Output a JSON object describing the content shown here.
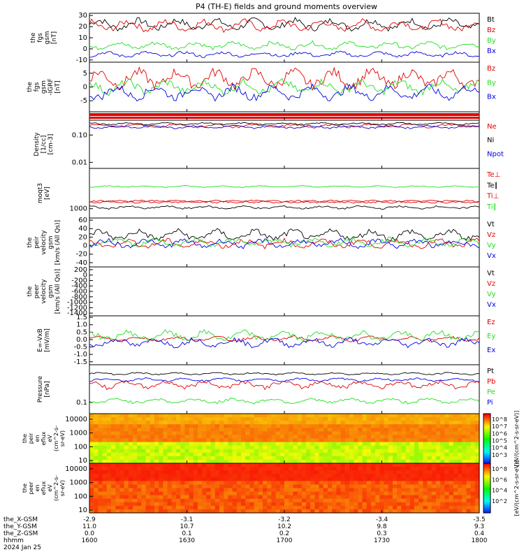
{
  "title": "P4 (TH-E) fields and ground moments overview",
  "colors": {
    "black": "#000000",
    "red": "#e00000",
    "green": "#22dd22",
    "blue": "#0000dd"
  },
  "chart_data": {
    "type": "line",
    "x": {
      "ticks": [
        "1600",
        "1630",
        "1700",
        "1730",
        "1800"
      ]
    },
    "footer": {
      "rows": [
        {
          "label": "the_X-GSM",
          "values": [
            "-2.9",
            "-3.1",
            "-3.2",
            "-3.4",
            "-3.5"
          ]
        },
        {
          "label": "the_Y-GSM",
          "values": [
            "11.0",
            "10.7",
            "10.2",
            "9.8",
            "9.3"
          ]
        },
        {
          "label": "the_Z-GSM",
          "values": [
            "0.0",
            "0.1",
            "0.2",
            "0.3",
            "0.4"
          ]
        },
        {
          "label": "hhmm",
          "values": [
            "1600",
            "1630",
            "1700",
            "1730",
            "1800"
          ]
        }
      ],
      "date": "2024 Jan 25"
    },
    "panels": [
      {
        "id": "fgs",
        "ylabel": [
          "the",
          "fgs",
          "gsm",
          "[nT]"
        ],
        "ylim": [
          -12,
          32
        ],
        "log": false,
        "yticks": [
          "30",
          "20",
          "10",
          "0",
          "-10"
        ],
        "ytick_values": [
          30,
          20,
          10,
          0,
          -10
        ],
        "series": [
          {
            "name": "Bt",
            "color": "black",
            "level": 22,
            "amp": 6
          },
          {
            "name": "Bz",
            "color": "red",
            "level": 21,
            "amp": 6
          },
          {
            "name": "By",
            "color": "green",
            "level": 3,
            "amp": 4
          },
          {
            "name": "Bx",
            "color": "blue",
            "level": -5,
            "amp": 3
          }
        ]
      },
      {
        "id": "fgs-dsl",
        "ylabel": [
          "the",
          "fgs",
          "gsm",
          "-IGRF",
          "[nT]"
        ],
        "ylim": [
          -9,
          9
        ],
        "log": false,
        "yticks": [
          "5",
          "0",
          "-5"
        ],
        "ytick_values": [
          5,
          0,
          -5
        ],
        "series": [
          {
            "name": "Bz",
            "color": "red",
            "level": 3,
            "amp": 4
          },
          {
            "name": "By",
            "color": "green",
            "level": 0,
            "amp": 3
          },
          {
            "name": "Bx",
            "color": "blue",
            "level": -2,
            "amp": 3
          }
        ]
      },
      {
        "id": "density",
        "ylabel": [
          "Density",
          "[1/cc]",
          "[cm-3]"
        ],
        "ylim": [
          0.006,
          0.35
        ],
        "log": true,
        "yticks": [
          "0.10",
          "0.01"
        ],
        "ytick_values": [
          0.1,
          0.01
        ],
        "series": [
          {
            "name": "Ne",
            "color": "red",
            "level": 0.22,
            "amp": 0.04
          },
          {
            "name": "Ni",
            "color": "black",
            "level": 0.26,
            "amp": 0.03
          },
          {
            "name": "Npot",
            "color": "blue",
            "level": 0.2,
            "amp": 0.03
          }
        ]
      },
      {
        "id": "temp",
        "ylabel": [
          "moqt3",
          "[eV]"
        ],
        "ylim": [
          500,
          20000
        ],
        "log": true,
        "yticks": [
          "1000"
        ],
        "ytick_values": [
          1000
        ],
        "series": [
          {
            "name": "Te⊥",
            "color": "red",
            "level": 1700,
            "amp": 200
          },
          {
            "name": "Te∥",
            "color": "black",
            "level": 1100,
            "amp": 150
          },
          {
            "name": "Ti⊥",
            "color": "red",
            "level": 1700,
            "amp": 200
          },
          {
            "name": "Ti∥",
            "color": "green",
            "level": 5200,
            "amp": 400
          }
        ]
      },
      {
        "id": "vel",
        "ylabel": [
          "the",
          "peir",
          "velocity",
          "gsm",
          "[km/s (All Qs)]"
        ],
        "ylim": [
          -50,
          65
        ],
        "log": false,
        "yticks": [
          "60",
          "40",
          "20",
          "0",
          "-20",
          "-40"
        ],
        "ytick_values": [
          60,
          40,
          20,
          0,
          -20,
          -40
        ],
        "series": [
          {
            "name": "Vt",
            "color": "black",
            "level": 25,
            "amp": 15
          },
          {
            "name": "Vz",
            "color": "red",
            "level": 5,
            "amp": 12
          },
          {
            "name": "Vy",
            "color": "green",
            "level": 8,
            "amp": 12
          },
          {
            "name": "Vx",
            "color": "blue",
            "level": 5,
            "amp": 12
          }
        ]
      },
      {
        "id": "vel-peer",
        "ylabel": [
          "the",
          "peer",
          "velocity",
          "gsm",
          "[km/s (All Qs)]"
        ],
        "ylim": [
          -1500,
          300
        ],
        "log": false,
        "yticks": [
          "200",
          "0",
          "-200",
          "-400",
          "-600",
          "-800",
          "-1000",
          "-1200",
          "-1400"
        ],
        "ytick_values": [
          200,
          0,
          -200,
          -400,
          -600,
          -800,
          -1000,
          -1200,
          -1400
        ],
        "series": [
          {
            "name": "Vt",
            "color": "black",
            "level": null,
            "amp": 0
          },
          {
            "name": "Vz",
            "color": "red",
            "level": null,
            "amp": 0
          },
          {
            "name": "Vy",
            "color": "green",
            "level": null,
            "amp": 0
          },
          {
            "name": "Vx",
            "color": "blue",
            "level": null,
            "amp": 0
          }
        ]
      },
      {
        "id": "efield",
        "ylabel": [
          "E=-VxB",
          "[mV/m]"
        ],
        "ylim": [
          -1.7,
          1.6
        ],
        "log": false,
        "yticks": [
          "1.5",
          "1.0",
          "0.5",
          "0.0",
          "-0.5",
          "-1.0",
          "-1.5"
        ],
        "ytick_values": [
          1.5,
          1.0,
          0.5,
          0.0,
          -0.5,
          -1.0,
          -1.5
        ],
        "series": [
          {
            "name": "Ez",
            "color": "red",
            "level": 0.05,
            "amp": 0.2
          },
          {
            "name": "Ey",
            "color": "green",
            "level": 0.25,
            "amp": 0.4
          },
          {
            "name": "Ex",
            "color": "blue",
            "level": -0.2,
            "amp": 0.35
          }
        ]
      },
      {
        "id": "pressure",
        "ylabel": [
          "Pressure",
          "[nPa]"
        ],
        "ylim": [
          0.05,
          1.0
        ],
        "log": true,
        "yticks": [
          "0.1"
        ],
        "ytick_values": [
          0.1
        ],
        "series": [
          {
            "name": "Pt",
            "color": "black",
            "level": 0.58,
            "amp": 0.05
          },
          {
            "name": "Pb",
            "color": "red",
            "level": 0.3,
            "amp": 0.08
          },
          {
            "name": "Pe",
            "color": "green",
            "level": 0.11,
            "amp": 0.02
          },
          {
            "name": "Pi",
            "color": "blue",
            "level": 0.4,
            "amp": 0.05
          }
        ]
      }
    ],
    "spectrograms": [
      {
        "id": "peir-eflux",
        "ylabel": [
          "the",
          "peir",
          "en",
          "eflux",
          "eV",
          "(cm^2-s-",
          "sr-eV)"
        ],
        "yticks": [
          "10000",
          "1000",
          "100",
          "10"
        ],
        "ytick_values": [
          10000,
          1000,
          100,
          10
        ],
        "cbar_ticks": [
          "10^8",
          "10^7",
          "10^6",
          "10^5",
          "10^4",
          "10^3"
        ],
        "cbar_label": "[eV/(cm^2-s-sr-eV)]"
      },
      {
        "id": "peer-eflux",
        "ylabel": [
          "the",
          "peer",
          "en",
          "eflux",
          "eV",
          "(cm^2-s-",
          "sr-eV)"
        ],
        "yticks": [
          "10000",
          "1000",
          "100",
          "10"
        ],
        "ytick_values": [
          10000,
          1000,
          100,
          10
        ],
        "cbar_ticks": [
          "10^8",
          "10^6",
          "10^4",
          "10^2"
        ],
        "cbar_label": "[eV/(cm^2-s-sr-eV)]"
      }
    ]
  }
}
